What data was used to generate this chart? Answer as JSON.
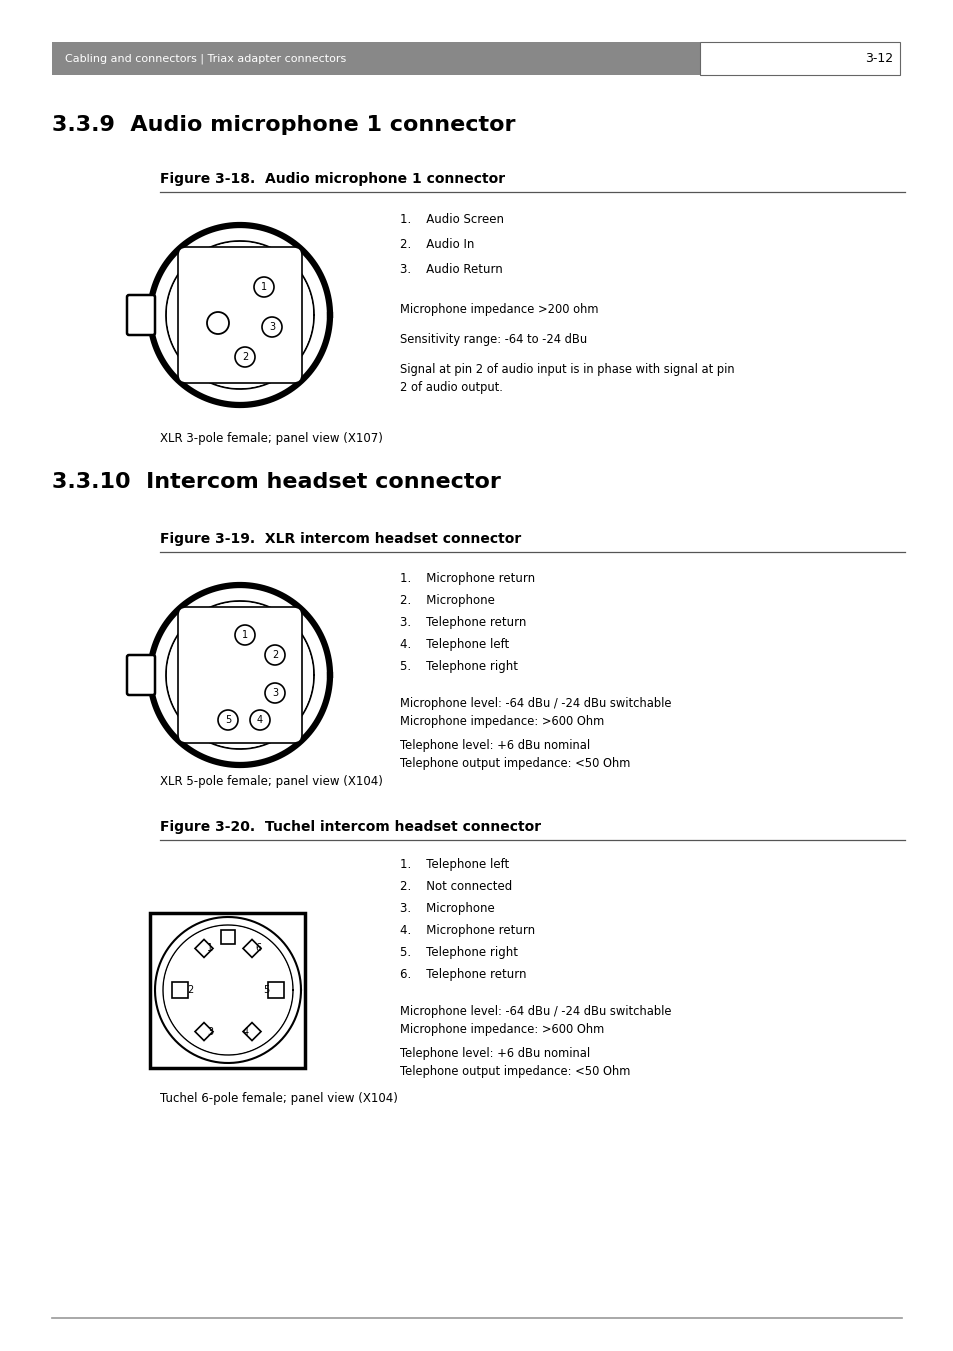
{
  "page_bg": "#ffffff",
  "header_bg": "#888888",
  "header_text": "Cabling and connectors | Triax adapter connectors",
  "header_page": "3-12",
  "header_text_color": "#ffffff",
  "header_page_color": "#000000",
  "section1_title": "3.3.9  Audio microphone 1 connector",
  "fig18_title": "Figure 3-18.  Audio microphone 1 connector",
  "fig18_items": [
    "1.    Audio Screen",
    "2.    Audio In",
    "3.    Audio Return"
  ],
  "fig18_note1": "Microphone impedance >200 ohm",
  "fig18_note2": "Sensitivity range: -64 to -24 dBu",
  "fig18_note3": "Signal at pin 2 of audio input is in phase with signal at pin\n2 of audio output.",
  "fig18_caption": "XLR 3-pole female; panel view (X107)",
  "section2_title": "3.3.10  Intercom headset connector",
  "fig19_title": "Figure 3-19.  XLR intercom headset connector",
  "fig19_items": [
    "1.    Microphone return",
    "2.    Microphone",
    "3.    Telephone return",
    "4.    Telephone left",
    "5.    Telephone right"
  ],
  "fig19_note1": "Microphone level: -64 dBu / -24 dBu switchable\nMicrophone impedance: >600 Ohm",
  "fig19_note2": "Telephone level: +6 dBu nominal\nTelephone output impedance: <50 Ohm",
  "fig19_caption": "XLR 5-pole female; panel view (X104)",
  "fig20_title": "Figure 3-20.  Tuchel intercom headset connector",
  "fig20_items": [
    "1.    Telephone left",
    "2.    Not connected",
    "3.    Microphone",
    "4.    Microphone return",
    "5.    Telephone right",
    "6.    Telephone return"
  ],
  "fig20_note1": "Microphone level: -64 dBu / -24 dBu switchable\nMicrophone impedance: >600 Ohm",
  "fig20_note2": "Telephone level: +6 dBu nominal\nTelephone output impedance: <50 Ohm",
  "fig20_caption": "Tuchel 6-pole female; panel view (X104)",
  "footer_line_color": "#999999",
  "text_color": "#000000"
}
